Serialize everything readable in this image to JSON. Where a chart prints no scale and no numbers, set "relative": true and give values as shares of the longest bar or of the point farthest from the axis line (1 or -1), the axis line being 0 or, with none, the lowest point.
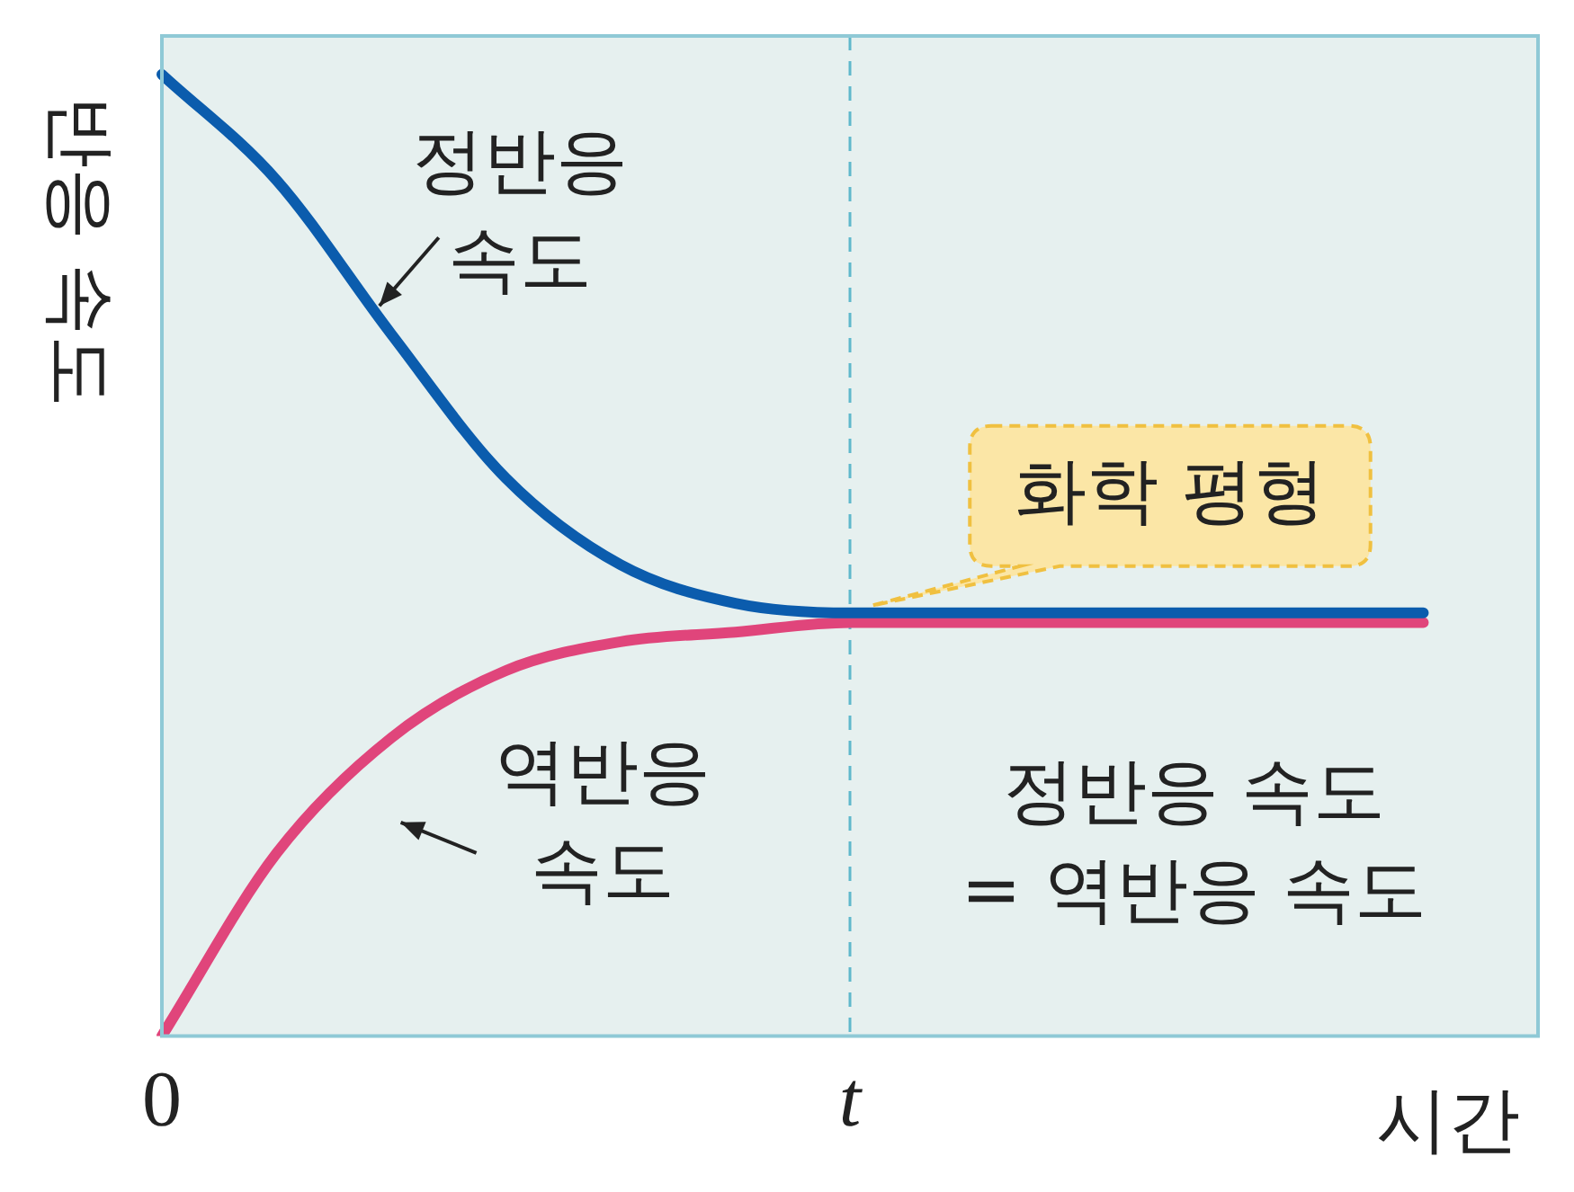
{
  "chart_data": {
    "type": "line",
    "relative": true,
    "xlabel": "시간",
    "ylabel": "반응 속도",
    "categories": [
      "0",
      null,
      null,
      null,
      null,
      null,
      "t",
      null,
      null,
      null,
      null,
      null,
      null
    ],
    "series": [
      {
        "color": "#0b5cad",
        "values": [
          1,
          0.89,
          0.73,
          0.58,
          0.49,
          0.45,
          0.44,
          0.44,
          0.44,
          0.44,
          0.44,
          0.44,
          null
        ]
      },
      {
        "color": "#e0457b",
        "values": [
          0,
          0.19,
          0.31,
          0.38,
          0.41,
          0.42,
          0.43,
          0.43,
          0.43,
          0.43,
          0.43,
          0.43,
          null
        ]
      }
    ],
    "ref_lines": [
      {
        "axis": "x",
        "value": "t",
        "color": "#5fb8cc",
        "line_style": "dashed"
      }
    ],
    "annotations": [
      "정반응\n속도",
      "역반응\n속도",
      {
        "text": "화학 평형",
        "x": "t",
        "y": 0.44
      },
      "정반응 속도\n= 역반응 속도"
    ],
    "grid": false,
    "legend": false,
    "marker": "none",
    "line_style": "solid"
  }
}
